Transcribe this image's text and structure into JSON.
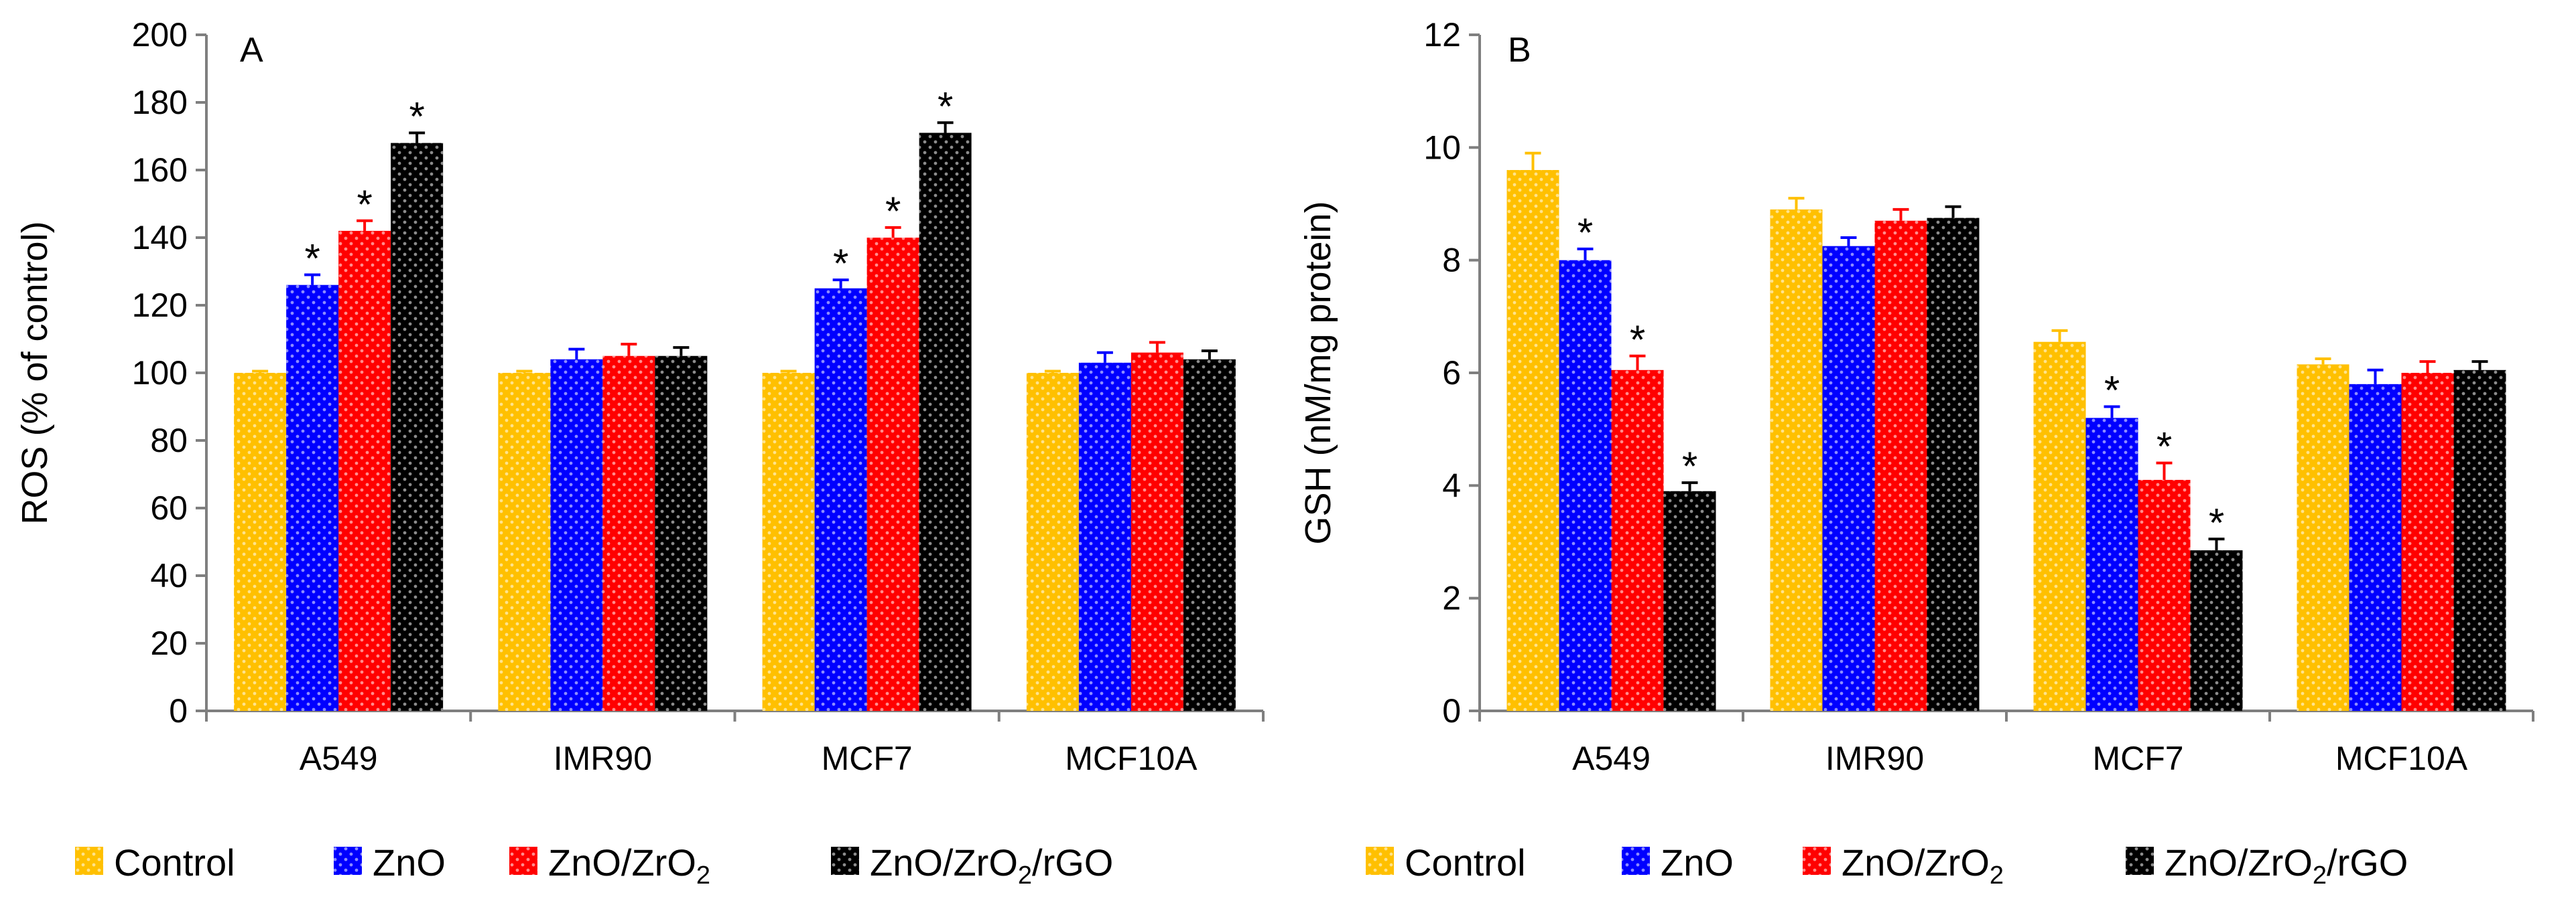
{
  "chart_data": [
    {
      "type": "bar",
      "panel_label": "A",
      "title": "",
      "xlabel": "",
      "ylabel": "ROS (% of control)",
      "ylim": [
        0,
        200
      ],
      "yticks": [
        0,
        20,
        40,
        60,
        80,
        100,
        120,
        140,
        160,
        180,
        200
      ],
      "grid": false,
      "categories": [
        "A549",
        "IMR90",
        "MCF7",
        "MCF10A"
      ],
      "series": [
        {
          "name": "Control",
          "color": "#FFC000",
          "values": [
            100,
            100,
            100,
            100
          ],
          "errors": [
            0.5,
            0.5,
            0.5,
            0.5
          ],
          "significant": [
            false,
            false,
            false,
            false
          ]
        },
        {
          "name": "ZnO",
          "color": "#0000FF",
          "values": [
            126,
            104,
            125,
            103
          ],
          "errors": [
            3,
            3,
            2.5,
            3
          ],
          "significant": [
            true,
            false,
            true,
            false
          ]
        },
        {
          "name": "ZnO/ZrO2",
          "color": "#FF0000",
          "values": [
            142,
            105,
            140,
            106
          ],
          "errors": [
            3,
            3.5,
            3,
            3
          ],
          "significant": [
            true,
            false,
            true,
            false
          ]
        },
        {
          "name": "ZnO/ZrO2/rGO",
          "color": "#000000",
          "values": [
            168,
            105,
            171,
            104
          ],
          "errors": [
            3,
            2.5,
            3,
            2.5
          ],
          "significant": [
            true,
            false,
            true,
            false
          ]
        }
      ],
      "significance_marker": "*"
    },
    {
      "type": "bar",
      "panel_label": "B",
      "title": "",
      "xlabel": "",
      "ylabel": "GSH (nM/mg protein)",
      "ylim": [
        0,
        12
      ],
      "yticks": [
        0,
        2,
        4,
        6,
        8,
        10,
        12
      ],
      "grid": false,
      "categories": [
        "A549",
        "IMR90",
        "MCF7",
        "MCF10A"
      ],
      "series": [
        {
          "name": "Control",
          "color": "#FFC000",
          "values": [
            9.6,
            8.9,
            6.55,
            6.15
          ],
          "errors": [
            0.3,
            0.2,
            0.2,
            0.1
          ],
          "significant": [
            false,
            false,
            false,
            false
          ]
        },
        {
          "name": "ZnO",
          "color": "#0000FF",
          "values": [
            8.0,
            8.25,
            5.2,
            5.8
          ],
          "errors": [
            0.2,
            0.15,
            0.2,
            0.25
          ],
          "significant": [
            true,
            false,
            true,
            false
          ]
        },
        {
          "name": "ZnO/ZrO2",
          "color": "#FF0000",
          "values": [
            6.05,
            8.7,
            4.1,
            6.0
          ],
          "errors": [
            0.25,
            0.2,
            0.3,
            0.2
          ],
          "significant": [
            true,
            false,
            true,
            false
          ]
        },
        {
          "name": "ZnO/ZrO2/rGO",
          "color": "#000000",
          "values": [
            3.9,
            8.75,
            2.85,
            6.05
          ],
          "errors": [
            0.15,
            0.2,
            0.2,
            0.15
          ],
          "significant": [
            true,
            false,
            true,
            false
          ]
        }
      ],
      "significance_marker": "*"
    }
  ],
  "legend": {
    "placement": "bottom",
    "entries": [
      {
        "label": "Control",
        "color": "#FFC000"
      },
      {
        "label": "ZnO",
        "color": "#0000FF"
      },
      {
        "label": "ZnO/ZrO2",
        "label_main": "ZnO/ZrO",
        "label_sub": "2",
        "color": "#FF0000"
      },
      {
        "label": "ZnO/ZrO2/rGO",
        "label_main": "ZnO/ZrO",
        "label_sub": "2",
        "label_tail": "/rGO",
        "color": "#000000"
      }
    ]
  }
}
